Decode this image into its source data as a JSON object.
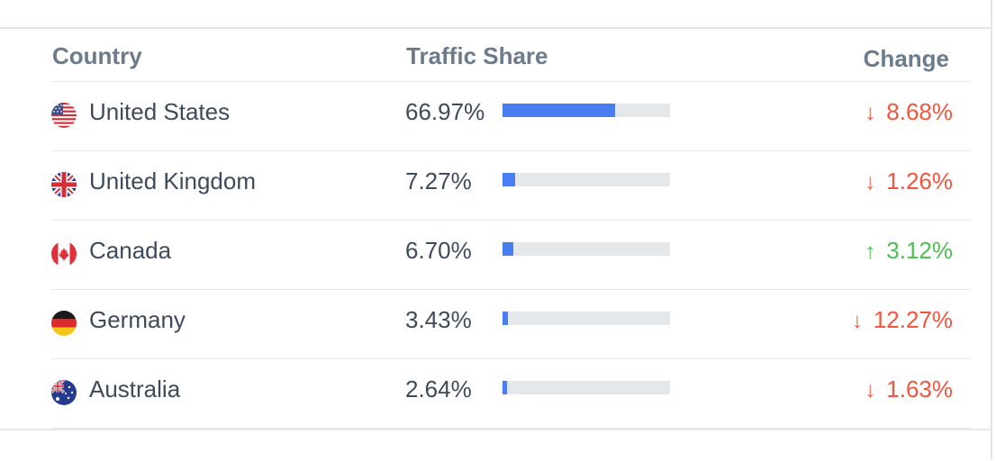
{
  "header": {
    "country": "Country",
    "traffic_share": "Traffic Share",
    "change": "Change"
  },
  "rows": [
    {
      "country": "United States",
      "flag_icon": "us-flag-icon",
      "share": "66.97%",
      "share_fraction": 0.6697,
      "direction": "down",
      "arrow": "↓",
      "change": "8.68%"
    },
    {
      "country": "United Kingdom",
      "flag_icon": "uk-flag-icon",
      "share": "7.27%",
      "share_fraction": 0.0727,
      "direction": "down",
      "arrow": "↓",
      "change": "1.26%"
    },
    {
      "country": "Canada",
      "flag_icon": "canada-flag-icon",
      "share": "6.70%",
      "share_fraction": 0.067,
      "direction": "up",
      "arrow": "↑",
      "change": "3.12%"
    },
    {
      "country": "Germany",
      "flag_icon": "germany-flag-icon",
      "share": "3.43%",
      "share_fraction": 0.0343,
      "direction": "down",
      "arrow": "↓",
      "change": "12.27%"
    },
    {
      "country": "Australia",
      "flag_icon": "australia-flag-icon",
      "share": "2.64%",
      "share_fraction": 0.0264,
      "direction": "down",
      "arrow": "↓",
      "change": "1.63%"
    }
  ],
  "colors": {
    "bar_fill": "#4a7cf2",
    "bar_track": "#e5e8eb",
    "down": "#f4553c",
    "up": "#4fbf54",
    "header_text": "#6b7a8c",
    "body_text": "#3d4a5c"
  }
}
